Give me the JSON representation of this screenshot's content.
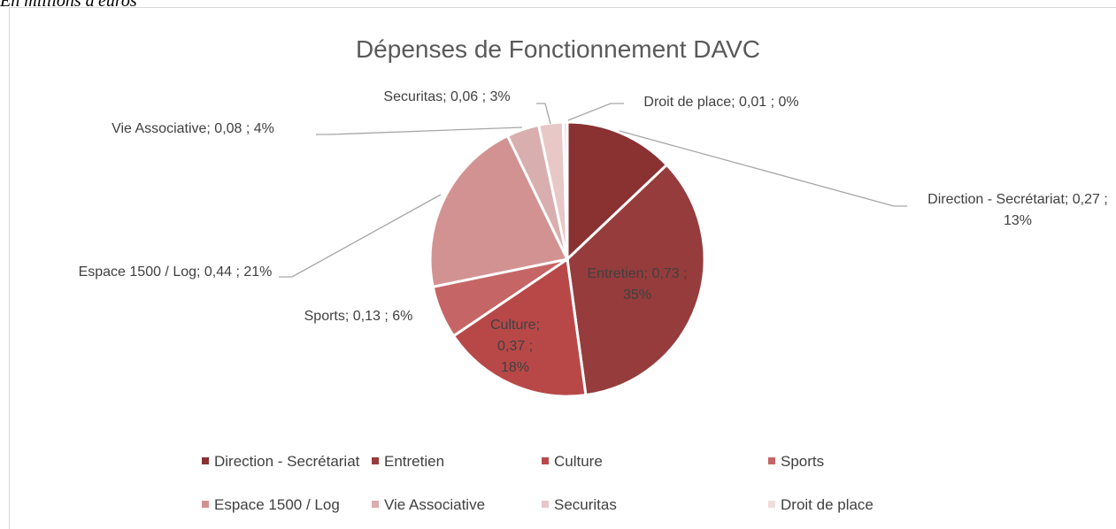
{
  "chart_data": {
    "type": "pie",
    "subtitle": "En millions d'euros",
    "title": "Dépenses de Fonctionnement DAVC",
    "categories": [
      "Direction - Secrétariat",
      "Entretien",
      "Culture",
      "Sports",
      "Espace 1500 / Log",
      "Vie Associative",
      "Securitas",
      "Droit de place"
    ],
    "values": [
      0.27,
      0.73,
      0.37,
      0.13,
      0.44,
      0.08,
      0.06,
      0.01
    ],
    "value_labels": [
      "Direction - Secrétariat; 0,27 ; 13%",
      "Entretien; 0,73 ; 35%",
      "Culture; 0,37 ; 18%",
      "Sports; 0,13 ; 6%",
      "Espace 1500 / Log; 0,44 ; 21%",
      "Vie Associative; 0,08 ; 4%",
      "Securitas; 0,06 ; 3%",
      "Droit de place; 0,01 ; 0%"
    ],
    "colors": [
      "#8a3131",
      "#963c3c",
      "#b84848",
      "#c66565",
      "#d39292",
      "#d9aeae",
      "#e8c7c7",
      "#f0dcdc"
    ],
    "legend": "bottom"
  }
}
